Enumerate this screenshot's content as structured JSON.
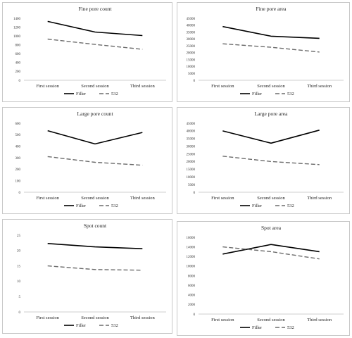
{
  "chart_data": [
    {
      "type": "line",
      "title": "Fine pore count",
      "categories": [
        "First session",
        "Second session",
        "Third session"
      ],
      "ylim": [
        0,
        1400
      ],
      "ystep": 200,
      "tick_labels_hidden_zero": false,
      "series": [
        {
          "name": "Filler",
          "values": [
            1330,
            1090,
            1010
          ],
          "color": "#000000",
          "dashed": false
        },
        {
          "name": "532",
          "values": [
            930,
            810,
            700
          ],
          "color": "#6b6b6b",
          "dashed": true
        }
      ],
      "legend": "bottom"
    },
    {
      "type": "line",
      "title": "Fine pore area",
      "categories": [
        "First session",
        "Second session",
        "Third session"
      ],
      "ylim": [
        0,
        45000
      ],
      "ystep": 5000,
      "series": [
        {
          "name": "Filler",
          "values": [
            39000,
            32000,
            30500
          ],
          "color": "#000000",
          "dashed": false
        },
        {
          "name": "532",
          "values": [
            26500,
            24000,
            20500
          ],
          "color": "#6b6b6b",
          "dashed": true
        }
      ],
      "legend": "bottom"
    },
    {
      "type": "line",
      "title": "Large pore count",
      "categories": [
        "First session",
        "Second session",
        "Third session"
      ],
      "ylim": [
        0,
        600
      ],
      "ystep": 100,
      "series": [
        {
          "name": "Filler",
          "values": [
            535,
            420,
            520
          ],
          "color": "#000000",
          "dashed": false
        },
        {
          "name": "532",
          "values": [
            310,
            260,
            235
          ],
          "color": "#6b6b6b",
          "dashed": true
        }
      ],
      "legend": "bottom"
    },
    {
      "type": "line",
      "title": "Large pore area",
      "categories": [
        "First session",
        "Second session",
        "Third session"
      ],
      "ylim": [
        0,
        45000
      ],
      "ystep": 5000,
      "series": [
        {
          "name": "Filler",
          "values": [
            40000,
            32000,
            40500
          ],
          "color": "#000000",
          "dashed": false
        },
        {
          "name": "532",
          "values": [
            23500,
            20000,
            18000
          ],
          "color": "#6b6b6b",
          "dashed": true
        }
      ],
      "legend": "bottom"
    },
    {
      "type": "line",
      "title": "Spot count",
      "categories": [
        "First session",
        "Second session",
        "Third session"
      ],
      "ylim": [
        0,
        25
      ],
      "ystep": 5,
      "series": [
        {
          "name": "Filler",
          "values": [
            22.3,
            21.2,
            20.6
          ],
          "color": "#000000",
          "dashed": false
        },
        {
          "name": "532",
          "values": [
            15.0,
            13.8,
            13.6
          ],
          "color": "#6b6b6b",
          "dashed": true
        }
      ],
      "legend": "bottom"
    },
    {
      "type": "line",
      "title": "Spot area",
      "categories": [
        "First session",
        "Second session",
        "Third session"
      ],
      "ylim": [
        0,
        16000
      ],
      "ystep": 2000,
      "series": [
        {
          "name": "Filler",
          "values": [
            12500,
            14500,
            13000
          ],
          "color": "#000000",
          "dashed": false
        },
        {
          "name": "532",
          "values": [
            14000,
            13000,
            11500
          ],
          "color": "#6b6b6b",
          "dashed": true
        }
      ],
      "legend": "bottom"
    }
  ]
}
